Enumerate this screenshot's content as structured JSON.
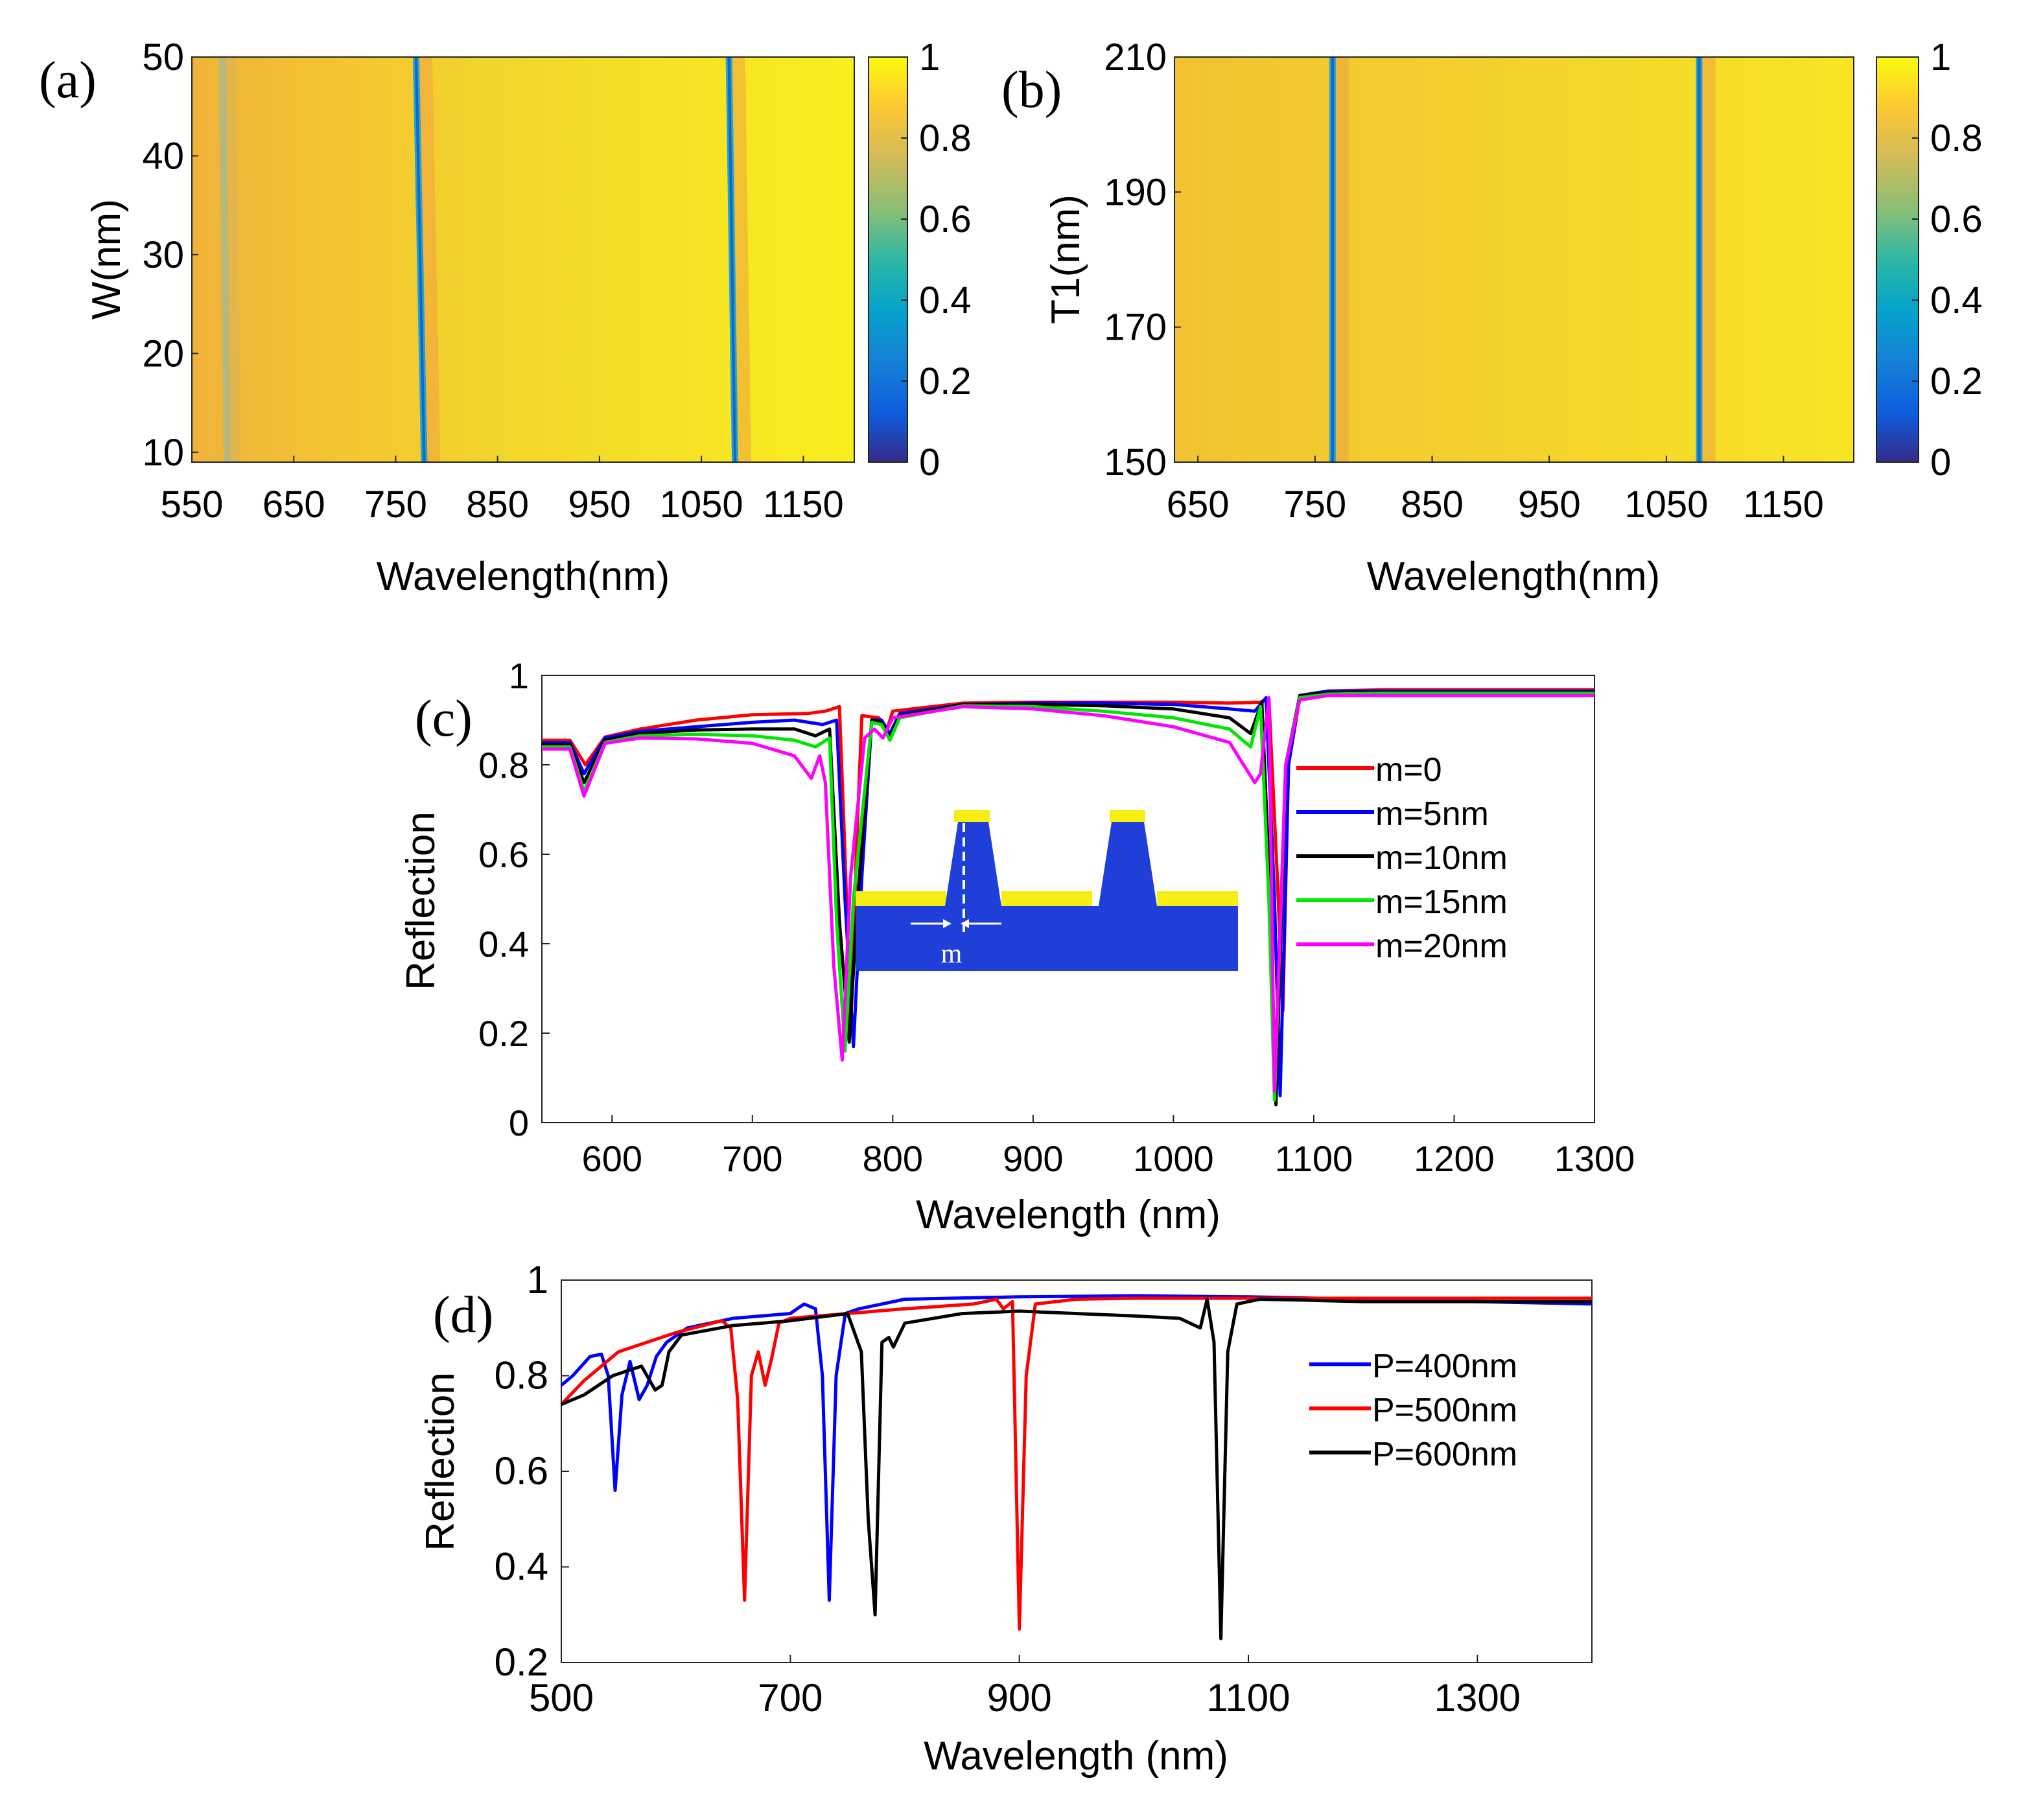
{
  "chart_data": [
    {
      "panel": "(a)",
      "type": "heatmap",
      "xlabel": "Wavelength(nm)",
      "ylabel": "W(nm)",
      "xlim": [
        550,
        1200
      ],
      "ylim": [
        9,
        50
      ],
      "xticks": [
        "550",
        "650",
        "750",
        "850",
        "950",
        "1050",
        "1150"
      ],
      "yticks": [
        "10",
        "20",
        "30",
        "40",
        "50"
      ],
      "colorbar": {
        "range": [
          0,
          1
        ],
        "ticks": [
          "0",
          "0.2",
          "0.4",
          "0.6",
          "0.8",
          "1"
        ]
      },
      "resonances": [
        {
          "wl_at_ymin": 778,
          "wl_at_ymax": 770,
          "min_value": 0.12
        },
        {
          "wl_at_ymin": 1083,
          "wl_at_ymax": 1077,
          "min_value": 0.15
        },
        {
          "wl_at_ymin": 585,
          "wl_at_ymax": 580,
          "min_value": 0.7
        }
      ]
    },
    {
      "panel": "(b)",
      "type": "heatmap",
      "xlabel": "Wavelength(nm)",
      "ylabel": "T1(nm)",
      "xlim": [
        630,
        1210
      ],
      "ylim": [
        150,
        210
      ],
      "xticks": [
        "650",
        "750",
        "850",
        "950",
        "1050",
        "1150"
      ],
      "yticks": [
        "150",
        "170",
        "190",
        "210"
      ],
      "colorbar": {
        "range": [
          0,
          1
        ],
        "ticks": [
          "0",
          "0.2",
          "0.4",
          "0.6",
          "0.8",
          "1"
        ]
      },
      "resonances": [
        {
          "wl_at_ymin": 765,
          "wl_at_ymax": 765,
          "min_value": 0.15
        },
        {
          "wl_at_ymin": 1078,
          "wl_at_ymax": 1078,
          "min_value": 0.15
        }
      ]
    },
    {
      "panel": "(c)",
      "type": "line",
      "xlabel": "Wavelength (nm)",
      "ylabel": "Reflection",
      "xlim": [
        550,
        1300
      ],
      "ylim": [
        0,
        1
      ],
      "xticks": [
        600,
        700,
        800,
        900,
        1000,
        1100,
        1200,
        1300
      ],
      "yticks": [
        0,
        0.2,
        0.4,
        0.6,
        0.8,
        1
      ],
      "inset_label": "m",
      "series": [
        {
          "name": "m=0",
          "color": "#ff0000",
          "x": [
            550,
            570,
            581,
            595,
            620,
            660,
            700,
            740,
            752,
            762,
            766,
            770,
            774,
            778,
            790,
            796,
            800,
            850,
            900,
            950,
            1000,
            1040,
            1062,
            1068,
            1074,
            1078,
            1082,
            1090,
            1110,
            1150,
            1200,
            1250,
            1300
          ],
          "y": [
            0.855,
            0.855,
            0.8,
            0.862,
            0.88,
            0.9,
            0.912,
            0.915,
            0.92,
            0.93,
            0.6,
            0.2,
            0.6,
            0.91,
            0.905,
            0.88,
            0.92,
            0.938,
            0.94,
            0.94,
            0.94,
            0.938,
            0.94,
            0.95,
            0.55,
            0.25,
            0.8,
            0.95,
            0.965,
            0.968,
            0.968,
            0.968,
            0.968
          ]
        },
        {
          "name": "m=5nm",
          "color": "#0000ff",
          "x": [
            550,
            570,
            580,
            595,
            620,
            660,
            700,
            730,
            750,
            760,
            766,
            772,
            778,
            785,
            792,
            798,
            805,
            850,
            900,
            950,
            1000,
            1040,
            1058,
            1066,
            1072,
            1076,
            1082,
            1090,
            1110,
            1150,
            1200,
            1250,
            1300
          ],
          "y": [
            0.85,
            0.85,
            0.78,
            0.86,
            0.875,
            0.885,
            0.895,
            0.9,
            0.89,
            0.9,
            0.5,
            0.17,
            0.55,
            0.9,
            0.9,
            0.87,
            0.915,
            0.935,
            0.938,
            0.938,
            0.935,
            0.925,
            0.92,
            0.95,
            0.5,
            0.06,
            0.8,
            0.955,
            0.965,
            0.965,
            0.965,
            0.965,
            0.965
          ]
        },
        {
          "name": "m=10nm",
          "color": "#000000",
          "x": [
            550,
            570,
            580,
            595,
            620,
            660,
            700,
            730,
            745,
            755,
            762,
            769,
            775,
            785,
            792,
            798,
            805,
            850,
            900,
            950,
            1000,
            1040,
            1055,
            1063,
            1069,
            1073,
            1080,
            1090,
            1110,
            1150,
            1200,
            1250,
            1300
          ],
          "y": [
            0.845,
            0.845,
            0.76,
            0.855,
            0.87,
            0.878,
            0.88,
            0.88,
            0.865,
            0.88,
            0.45,
            0.18,
            0.5,
            0.9,
            0.895,
            0.86,
            0.91,
            0.935,
            0.935,
            0.932,
            0.925,
            0.905,
            0.87,
            0.94,
            0.5,
            0.04,
            0.8,
            0.955,
            0.962,
            0.962,
            0.962,
            0.962,
            0.962
          ]
        },
        {
          "name": "m=15nm",
          "color": "#00e600",
          "x": [
            550,
            570,
            580,
            595,
            620,
            660,
            700,
            730,
            745,
            755,
            760,
            766,
            772,
            785,
            792,
            798,
            805,
            850,
            900,
            950,
            1000,
            1040,
            1055,
            1062,
            1068,
            1072,
            1080,
            1090,
            1110,
            1150,
            1200,
            1250,
            1300
          ],
          "y": [
            0.84,
            0.84,
            0.74,
            0.85,
            0.865,
            0.868,
            0.865,
            0.855,
            0.84,
            0.86,
            0.45,
            0.16,
            0.5,
            0.895,
            0.89,
            0.855,
            0.905,
            0.932,
            0.93,
            0.92,
            0.905,
            0.88,
            0.84,
            0.93,
            0.5,
            0.05,
            0.8,
            0.95,
            0.958,
            0.96,
            0.96,
            0.96,
            0.96
          ]
        },
        {
          "name": "m=20nm",
          "color": "#ff00ff",
          "x": [
            550,
            570,
            580,
            595,
            620,
            660,
            700,
            730,
            742,
            748,
            752,
            758,
            764,
            770,
            780,
            787,
            793,
            800,
            850,
            900,
            950,
            1000,
            1040,
            1058,
            1062,
            1068,
            1072,
            1080,
            1090,
            1110,
            1150,
            1200,
            1250,
            1300
          ],
          "y": [
            0.835,
            0.835,
            0.73,
            0.848,
            0.86,
            0.858,
            0.848,
            0.82,
            0.77,
            0.82,
            0.76,
            0.35,
            0.14,
            0.55,
            0.86,
            0.88,
            0.86,
            0.905,
            0.93,
            0.925,
            0.91,
            0.885,
            0.85,
            0.76,
            0.78,
            0.95,
            0.07,
            0.8,
            0.945,
            0.955,
            0.955,
            0.955,
            0.955,
            0.955
          ]
        }
      ]
    },
    {
      "panel": "(d)",
      "type": "line",
      "xlabel": "Wavelength (nm)",
      "ylabel": "Reflection",
      "xlim": [
        500,
        1400
      ],
      "ylim": [
        0.2,
        1
      ],
      "xticks": [
        500,
        700,
        900,
        1100,
        1300
      ],
      "yticks": [
        0.2,
        0.4,
        0.6,
        0.8,
        1
      ],
      "series": [
        {
          "name": "P=400nm",
          "color": "#0000ff",
          "x": [
            500,
            510,
            525,
            535,
            541,
            547,
            553,
            560,
            568,
            575,
            583,
            592,
            610,
            650,
            700,
            712,
            722,
            728,
            734,
            740,
            748,
            760,
            800,
            900,
            1000,
            1100,
            1200,
            1300,
            1400
          ],
          "y": [
            0.78,
            0.8,
            0.84,
            0.845,
            0.8,
            0.56,
            0.76,
            0.83,
            0.75,
            0.78,
            0.84,
            0.87,
            0.9,
            0.92,
            0.93,
            0.95,
            0.94,
            0.8,
            0.33,
            0.8,
            0.93,
            0.94,
            0.96,
            0.965,
            0.967,
            0.965,
            0.96,
            0.955,
            0.95
          ]
        },
        {
          "name": "P=500nm",
          "color": "#ff0000",
          "x": [
            500,
            520,
            550,
            600,
            640,
            648,
            654,
            660,
            666,
            672,
            678,
            684,
            690,
            700,
            750,
            800,
            860,
            880,
            886,
            894,
            900,
            906,
            914,
            950,
            1000,
            1100,
            1200,
            1300,
            1400
          ],
          "y": [
            0.74,
            0.79,
            0.85,
            0.89,
            0.915,
            0.9,
            0.75,
            0.33,
            0.8,
            0.85,
            0.78,
            0.84,
            0.91,
            0.92,
            0.93,
            0.94,
            0.95,
            0.96,
            0.94,
            0.955,
            0.27,
            0.8,
            0.95,
            0.96,
            0.962,
            0.962,
            0.962,
            0.962,
            0.962
          ]
        },
        {
          "name": "P=600nm",
          "color": "#000000",
          "x": [
            500,
            520,
            545,
            570,
            582,
            588,
            594,
            605,
            650,
            700,
            750,
            762,
            768,
            774,
            780,
            786,
            790,
            800,
            850,
            900,
            950,
            1000,
            1040,
            1058,
            1064,
            1070,
            1076,
            1082,
            1090,
            1110,
            1150,
            1200,
            1300,
            1400
          ],
          "y": [
            0.74,
            0.76,
            0.8,
            0.82,
            0.77,
            0.78,
            0.85,
            0.885,
            0.905,
            0.915,
            0.93,
            0.85,
            0.5,
            0.3,
            0.87,
            0.88,
            0.86,
            0.91,
            0.93,
            0.935,
            0.93,
            0.925,
            0.92,
            0.9,
            0.96,
            0.87,
            0.25,
            0.85,
            0.95,
            0.96,
            0.958,
            0.955,
            0.955,
            0.955
          ]
        }
      ]
    }
  ]
}
